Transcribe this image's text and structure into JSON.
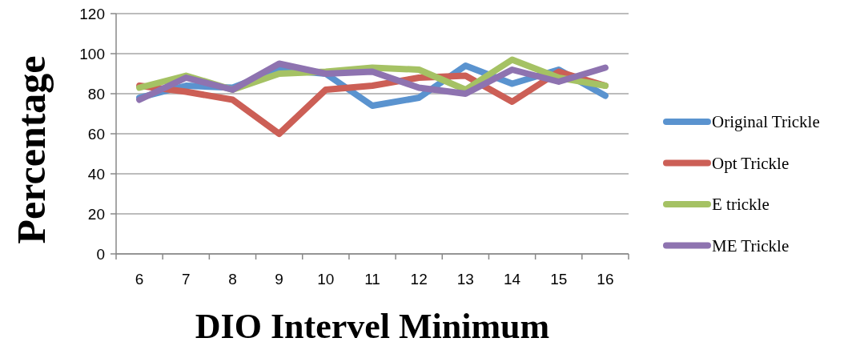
{
  "chart_data": {
    "type": "line",
    "xlabel": "DIO Intervel Minimum",
    "ylabel": "Percentage",
    "categories": [
      "6",
      "7",
      "8",
      "9",
      "10",
      "11",
      "12",
      "13",
      "14",
      "15",
      "16"
    ],
    "ylim": [
      0,
      120
    ],
    "yticks": [
      0,
      20,
      40,
      60,
      80,
      100,
      120
    ],
    "grid": "y",
    "legend": "right",
    "marker": "none",
    "line_style": "solid",
    "series": [
      {
        "name": "Original Trickle",
        "color": "#5a93cf",
        "values": [
          78,
          84,
          83,
          92,
          90,
          74,
          78,
          94,
          85,
          92,
          79
        ]
      },
      {
        "name": "Opt Trickle",
        "color": "#cc5f56",
        "values": [
          84,
          81,
          77,
          60,
          82,
          84,
          88,
          89,
          76,
          91,
          84
        ]
      },
      {
        "name": "E trickle",
        "color": "#a5c264",
        "values": [
          83,
          89,
          82,
          90,
          91,
          93,
          92,
          82,
          97,
          88,
          84
        ]
      },
      {
        "name": "ME Trickle",
        "color": "#8e73b0",
        "values": [
          77,
          88,
          82,
          95,
          90,
          91,
          83,
          80,
          92,
          86,
          93
        ]
      }
    ]
  }
}
